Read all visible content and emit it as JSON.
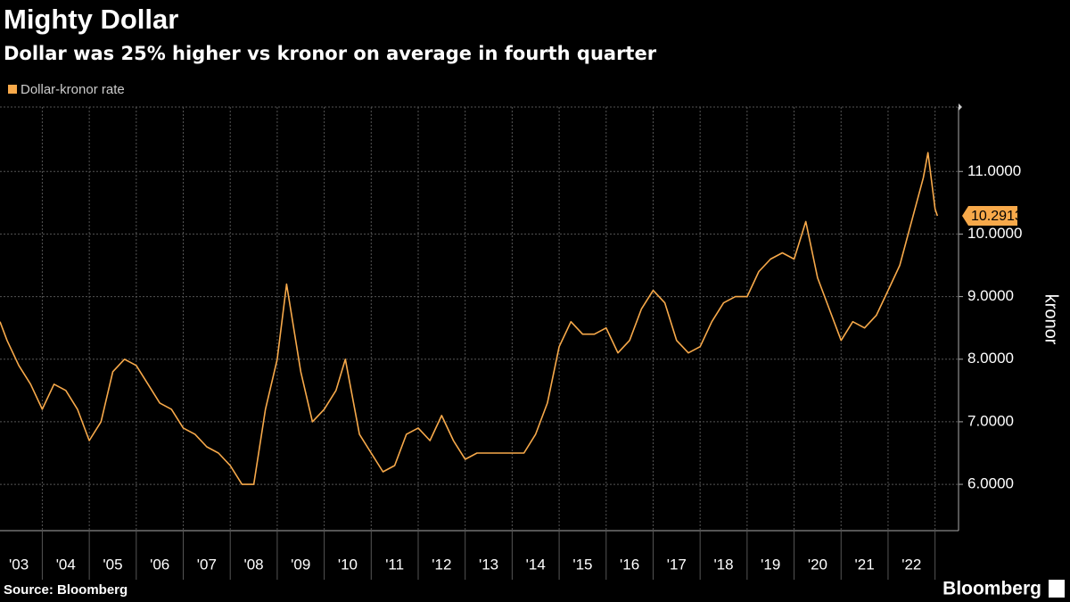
{
  "chart_data": {
    "type": "line",
    "title": "Mighty Dollar",
    "subtitle": "Dollar was 25% higher vs kronor on average in fourth quarter",
    "y_label": "kronor",
    "source": "Source: Bloomberg",
    "logo": "Bloomberg",
    "last_value_label": "10.2913",
    "x": [
      2003.1,
      2003.25,
      2003.5,
      2003.75,
      2004.0,
      2004.25,
      2004.5,
      2004.75,
      2005.0,
      2005.25,
      2005.5,
      2005.75,
      2006.0,
      2006.25,
      2006.5,
      2006.75,
      2007.0,
      2007.25,
      2007.5,
      2007.75,
      2008.0,
      2008.25,
      2008.5,
      2008.75,
      2009.0,
      2009.2,
      2009.5,
      2009.75,
      2010.0,
      2010.25,
      2010.45,
      2010.75,
      2011.0,
      2011.25,
      2011.5,
      2011.75,
      2012.0,
      2012.25,
      2012.5,
      2012.75,
      2013.0,
      2013.25,
      2013.5,
      2013.75,
      2014.0,
      2014.25,
      2014.5,
      2014.75,
      2015.0,
      2015.25,
      2015.5,
      2015.75,
      2016.0,
      2016.25,
      2016.5,
      2016.75,
      2017.0,
      2017.25,
      2017.5,
      2017.75,
      2018.0,
      2018.25,
      2018.5,
      2018.75,
      2019.0,
      2019.25,
      2019.5,
      2019.75,
      2020.0,
      2020.25,
      2020.5,
      2020.75,
      2021.0,
      2021.25,
      2021.5,
      2021.75,
      2022.0,
      2022.25,
      2022.5,
      2022.75,
      2022.85,
      2023.0,
      2023.05
    ],
    "series": [
      {
        "name": "Dollar-kronor rate",
        "color": "#f7a94a",
        "values": [
          8.6,
          8.3,
          7.9,
          7.6,
          7.2,
          7.6,
          7.5,
          7.2,
          6.7,
          7.0,
          7.8,
          8.0,
          7.9,
          7.6,
          7.3,
          7.2,
          6.9,
          6.8,
          6.6,
          6.5,
          6.3,
          6.0,
          6.0,
          7.2,
          8.0,
          9.2,
          7.8,
          7.0,
          7.2,
          7.5,
          8.0,
          6.8,
          6.5,
          6.2,
          6.3,
          6.8,
          6.9,
          6.7,
          7.1,
          6.7,
          6.4,
          6.5,
          6.5,
          6.5,
          6.5,
          6.5,
          6.8,
          7.3,
          8.2,
          8.6,
          8.4,
          8.4,
          8.5,
          8.1,
          8.3,
          8.8,
          9.1,
          8.9,
          8.3,
          8.1,
          8.2,
          8.6,
          8.9,
          9.0,
          9.0,
          9.4,
          9.6,
          9.7,
          9.6,
          10.2,
          9.3,
          8.8,
          8.3,
          8.6,
          8.5,
          8.7,
          9.1,
          9.5,
          10.2,
          10.9,
          11.3,
          10.4,
          10.2913
        ]
      }
    ],
    "xlim": [
      2003.1,
      2023.5
    ],
    "ylim": [
      5.26,
      12.03
    ],
    "xticks": [
      {
        "value": 2003.5,
        "label": "'03"
      },
      {
        "value": 2004.5,
        "label": "'04"
      },
      {
        "value": 2005.5,
        "label": "'05"
      },
      {
        "value": 2006.5,
        "label": "'06"
      },
      {
        "value": 2007.5,
        "label": "'07"
      },
      {
        "value": 2008.5,
        "label": "'08"
      },
      {
        "value": 2009.5,
        "label": "'09"
      },
      {
        "value": 2010.5,
        "label": "'10"
      },
      {
        "value": 2011.5,
        "label": "'11"
      },
      {
        "value": 2012.5,
        "label": "'12"
      },
      {
        "value": 2013.5,
        "label": "'13"
      },
      {
        "value": 2014.5,
        "label": "'14"
      },
      {
        "value": 2015.5,
        "label": "'15"
      },
      {
        "value": 2016.5,
        "label": "'16"
      },
      {
        "value": 2017.5,
        "label": "'17"
      },
      {
        "value": 2018.5,
        "label": "'18"
      },
      {
        "value": 2019.5,
        "label": "'19"
      },
      {
        "value": 2020.5,
        "label": "'20"
      },
      {
        "value": 2021.5,
        "label": "'21"
      },
      {
        "value": 2022.5,
        "label": "'22"
      }
    ],
    "yticks": [
      {
        "value": 6,
        "label": "6.0000"
      },
      {
        "value": 7,
        "label": "7.0000"
      },
      {
        "value": 8,
        "label": "8.0000"
      },
      {
        "value": 9,
        "label": "9.0000"
      },
      {
        "value": 10,
        "label": "10.0000"
      },
      {
        "value": 11,
        "label": "11.0000"
      }
    ],
    "grid": true
  }
}
